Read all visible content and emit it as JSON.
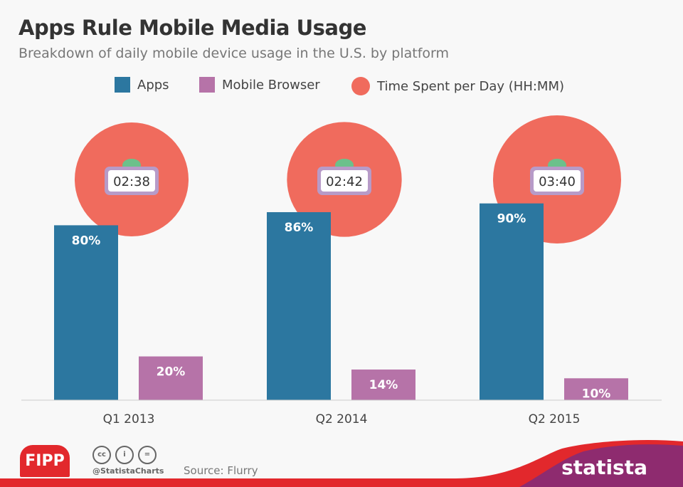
{
  "chart_data": {
    "type": "bar",
    "title": "Apps Rule Mobile Media Usage",
    "subtitle": "Breakdown of daily mobile device usage in the U.S. by platform",
    "categories": [
      "Q1 2013",
      "Q2 2014",
      "Q2 2015"
    ],
    "series": [
      {
        "name": "Apps",
        "values": [
          80,
          86,
          90
        ],
        "labels": [
          "80%",
          "86%",
          "90%"
        ],
        "color": "#2c77a0"
      },
      {
        "name": "Mobile Browser",
        "values": [
          20,
          14,
          10
        ],
        "labels": [
          "20%",
          "14%",
          "10%"
        ],
        "color": "#b673a8"
      }
    ],
    "time_series": {
      "name": "Time Spent per Day (HH:MM)",
      "values": [
        "02:38",
        "02:42",
        "03:40"
      ],
      "color": "#f06b5d"
    },
    "ylim": [
      0,
      100
    ],
    "grid": false,
    "legend": "top"
  },
  "footer": {
    "source": "Source: Flurry",
    "handle": "@StatistaCharts",
    "brand": "statista",
    "partner": "FIPP"
  }
}
